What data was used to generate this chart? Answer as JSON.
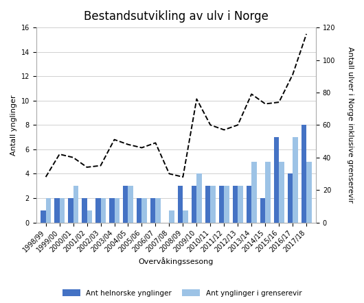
{
  "title": "Bestandsutvikling av ulv i Norge",
  "xlabel": "Overvåkingssesong",
  "ylabel_left": "Antall ynglinger",
  "ylabel_right": "Antall ulver i Norge inklusive grenserevir",
  "seasons": [
    "1998/99",
    "1999/00",
    "2000/01",
    "2001/02",
    "2002/03",
    "2003/04",
    "2004/05",
    "2005/06",
    "2006/07",
    "2007/08",
    "2008/09",
    "2009/10",
    "2010/11",
    "2011/12",
    "2012/13",
    "2013/14",
    "2014/15",
    "2015/16",
    "2016/17",
    "2017/18"
  ],
  "helnorske": [
    1,
    2,
    2,
    2,
    2,
    2,
    3,
    2,
    2,
    0,
    3,
    3,
    3,
    3,
    3,
    3,
    2,
    7,
    4,
    8
  ],
  "grenserevir": [
    2,
    2,
    3,
    1,
    2,
    2,
    3,
    2,
    2,
    1,
    1,
    4,
    3,
    3,
    3,
    5,
    5,
    5,
    7,
    5
  ],
  "ulver_line": [
    28,
    42,
    40,
    34,
    35,
    51,
    48,
    46,
    49,
    30,
    28,
    76,
    60,
    57,
    60,
    79,
    73,
    74,
    91,
    116
  ],
  "bar_color_dark": "#4472C4",
  "bar_color_light": "#9DC3E6",
  "line_color": "#000000",
  "ylim_left": [
    0,
    16
  ],
  "ylim_right": [
    0,
    120
  ],
  "legend_label_dark": "Ant helnorske ynglinger",
  "legend_label_light": "Ant ynglinger i grenserevir",
  "background_color": "#FFFFFF",
  "grid_color": "#D0D0D0",
  "title_fontsize": 12,
  "axis_label_fontsize": 8,
  "tick_fontsize": 7,
  "xlabel_fontsize": 8
}
